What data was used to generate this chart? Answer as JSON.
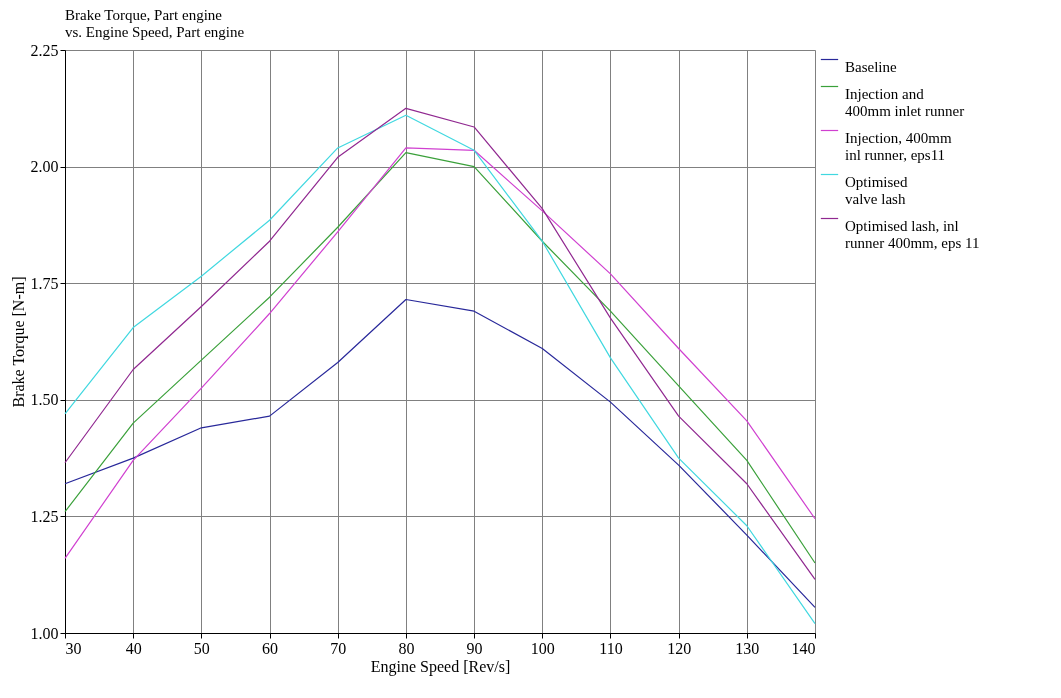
{
  "chart_data": {
    "type": "line",
    "title": [
      "Brake Torque, Part engine",
      "vs. Engine Speed, Part engine"
    ],
    "xlabel": "Engine Speed [Rev/s]",
    "ylabel": "Brake Torque [N-m]",
    "x": [
      30,
      40,
      50,
      60,
      70,
      80,
      90,
      100,
      110,
      120,
      130,
      140
    ],
    "series": [
      {
        "name": "Baseline",
        "color": "#28289a",
        "values": [
          1.32,
          1.375,
          1.44,
          1.465,
          1.58,
          1.715,
          1.69,
          1.61,
          1.495,
          1.36,
          1.21,
          1.055
        ]
      },
      {
        "name": "Injection and\n400mm inlet runner",
        "color": "#3aa03a",
        "values": [
          1.26,
          1.45,
          1.585,
          1.72,
          1.87,
          2.03,
          2.0,
          1.84,
          1.69,
          1.53,
          1.37,
          1.15
        ]
      },
      {
        "name": "Injection, 400mm\ninl runner, eps11",
        "color": "#d040d0",
        "values": [
          1.16,
          1.37,
          1.525,
          1.685,
          1.86,
          2.04,
          2.035,
          1.905,
          1.77,
          1.61,
          1.455,
          1.245
        ]
      },
      {
        "name": "Optimised\nvalve lash",
        "color": "#40d8e0",
        "values": [
          1.47,
          1.655,
          1.765,
          1.885,
          2.04,
          2.11,
          2.035,
          1.84,
          1.59,
          1.375,
          1.23,
          1.02
        ]
      },
      {
        "name": "Optimised lash, inl\nrunner 400mm, eps 11",
        "color": "#902890",
        "values": [
          1.365,
          1.565,
          1.7,
          1.84,
          2.02,
          2.125,
          2.085,
          1.91,
          1.675,
          1.465,
          1.32,
          1.115
        ]
      }
    ],
    "xlim": [
      30,
      140
    ],
    "xticks": [
      30,
      40,
      50,
      60,
      70,
      80,
      90,
      100,
      110,
      120,
      130,
      140
    ],
    "ylim": [
      1,
      2.25
    ],
    "yticks": [
      {
        "value": 1,
        "label": "1.00"
      },
      {
        "value": 1.25,
        "label": "1.25"
      },
      {
        "value": 1.5,
        "label": "1.50"
      },
      {
        "value": 1.75,
        "label": "1.75"
      },
      {
        "value": 2,
        "label": "2.00"
      },
      {
        "value": 2.25,
        "label": "2.25"
      }
    ],
    "grid": true,
    "legend": "right",
    "marker": "none",
    "line_style": "solid"
  }
}
